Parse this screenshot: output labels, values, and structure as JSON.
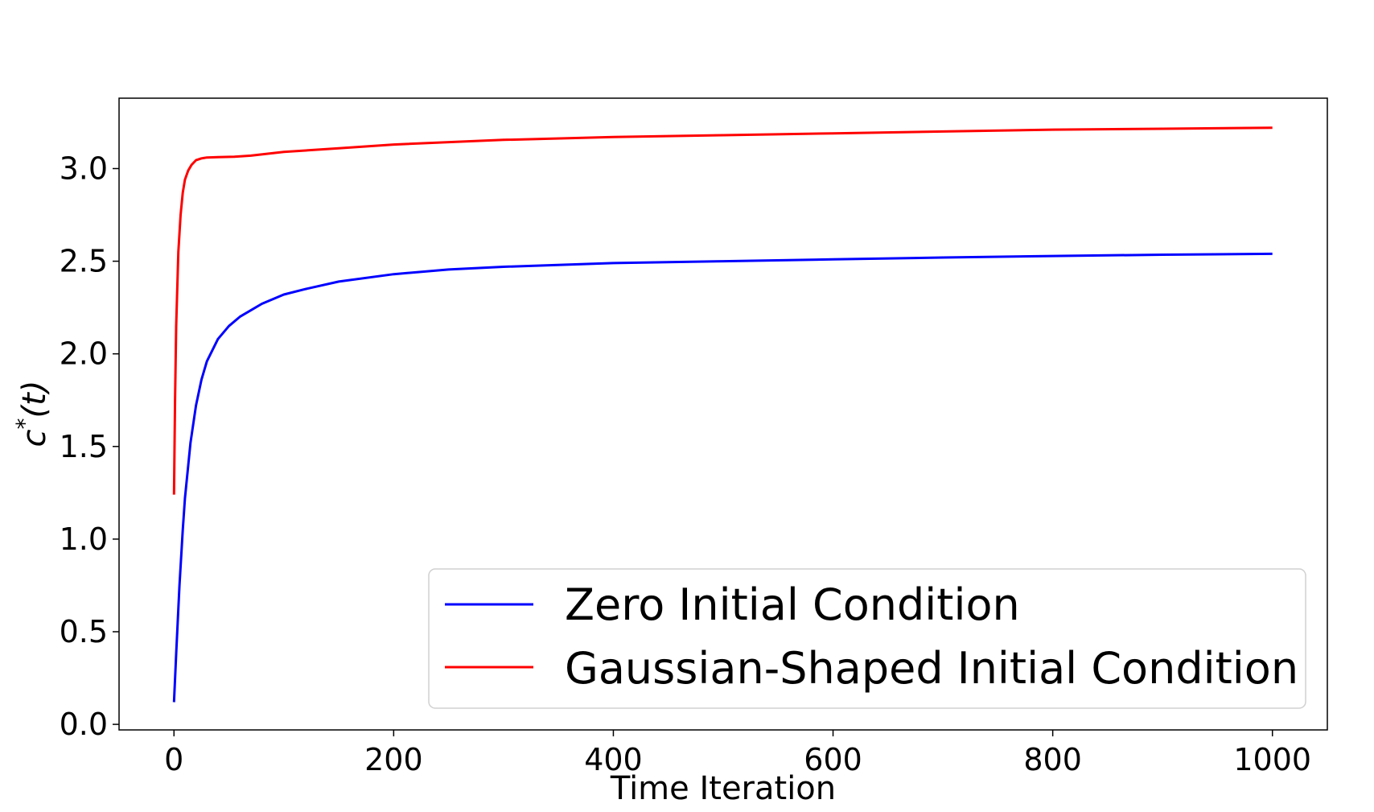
{
  "chart_data": {
    "type": "line",
    "xlabel": "Time Iteration",
    "ylabel_base": "c",
    "ylabel_sup": "*",
    "ylabel_arg": "(t)",
    "xlim": [
      -50,
      1050
    ],
    "ylim": [
      -0.03,
      3.38
    ],
    "xticks": [
      0,
      200,
      400,
      600,
      800,
      1000
    ],
    "xtick_labels": [
      "0",
      "200",
      "400",
      "600",
      "800",
      "1000"
    ],
    "yticks": [
      0.0,
      0.5,
      1.0,
      1.5,
      2.0,
      2.5,
      3.0
    ],
    "ytick_labels": [
      "0.0",
      "0.5",
      "1.0",
      "1.5",
      "2.0",
      "2.5",
      "3.0"
    ],
    "grid": false,
    "legend_position": "lower-right",
    "series": [
      {
        "name": "Zero Initial Condition",
        "color": "#0000ff",
        "x": [
          0,
          2,
          5,
          8,
          10,
          15,
          20,
          25,
          30,
          40,
          50,
          60,
          80,
          100,
          120,
          150,
          200,
          250,
          300,
          400,
          500,
          600,
          700,
          800,
          900,
          1000
        ],
        "y": [
          0.12,
          0.38,
          0.75,
          1.05,
          1.22,
          1.52,
          1.72,
          1.86,
          1.96,
          2.08,
          2.15,
          2.2,
          2.27,
          2.32,
          2.35,
          2.39,
          2.43,
          2.455,
          2.47,
          2.49,
          2.5,
          2.51,
          2.52,
          2.528,
          2.535,
          2.54
        ]
      },
      {
        "name": "Gaussian-Shaped Initial Condition",
        "color": "#ff0000",
        "x": [
          0,
          1,
          2,
          4,
          6,
          8,
          10,
          13,
          16,
          20,
          25,
          30,
          40,
          55,
          70,
          100,
          150,
          200,
          300,
          400,
          500,
          600,
          700,
          800,
          900,
          1000
        ],
        "y": [
          1.24,
          1.75,
          2.15,
          2.55,
          2.75,
          2.87,
          2.94,
          2.99,
          3.02,
          3.045,
          3.055,
          3.06,
          3.062,
          3.064,
          3.07,
          3.09,
          3.11,
          3.13,
          3.155,
          3.17,
          3.18,
          3.19,
          3.2,
          3.21,
          3.215,
          3.22
        ]
      }
    ]
  }
}
